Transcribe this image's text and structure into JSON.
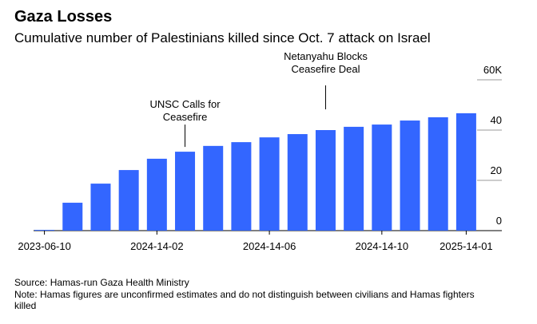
{
  "chart_data": {
    "type": "bar",
    "title": "Gaza Losses",
    "subtitle": "Cumulative number of Palestinians killed since Oct. 7 attack on Israel",
    "categories": [
      "2023-06-10",
      null,
      null,
      null,
      "2024-14-02",
      null,
      null,
      null,
      "2024-14-06",
      null,
      null,
      null,
      "2024-14-10",
      null,
      null,
      "2025-14-01"
    ],
    "values": [
      0.3,
      11.1,
      18.7,
      24.1,
      28.6,
      31.4,
      33.7,
      35.2,
      37.1,
      38.4,
      40,
      41.3,
      42.2,
      43.8,
      45.1,
      46.7
    ],
    "color": "#3366ff",
    "ylim": [
      0,
      60
    ],
    "yticks": [
      0,
      20,
      40,
      {
        "value": 60,
        "label": "60K"
      }
    ],
    "annotations": [
      {
        "lines": [
          "UNSC Calls for",
          "Ceasefire"
        ]
      },
      {
        "lines": [
          "Netanyahu Blocks",
          "Ceasefire Deal"
        ]
      }
    ],
    "source": "Source: Hamas-run Gaza Health Ministry",
    "note": "Note: Hamas figures are unconfirmed estimates and do not distinguish between civilians and Hamas fighters killed"
  }
}
